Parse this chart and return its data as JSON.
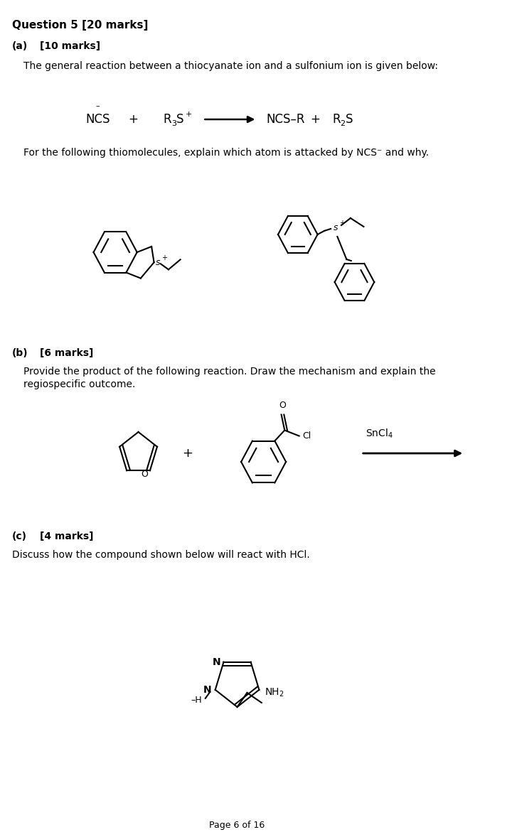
{
  "bg_color": "#ffffff",
  "title_bold": "Question 5 [20 marks]",
  "section_a_label": "(a)",
  "section_a_marks": "[10 marks]",
  "section_a_text": "The general reaction between a thiocyanate ion and a sulfonium ion is given below:",
  "section_a_subtext": "For the following thiomolecules, explain which atom is attacked by NCS⁻ and why.",
  "section_b_label": "(b)",
  "section_b_marks": "[6 marks]",
  "section_b_text1": "Provide the product of the following reaction. Draw the mechanism and explain the",
  "section_b_text2": "regiospecific outcome.",
  "section_c_label": "(c)",
  "section_c_marks": "[4 marks]",
  "section_c_text": "Discuss how the compound shown below will react with HCl.",
  "page_footer": "Page 6 of 16",
  "font_size_title": 11,
  "font_size_body": 10
}
